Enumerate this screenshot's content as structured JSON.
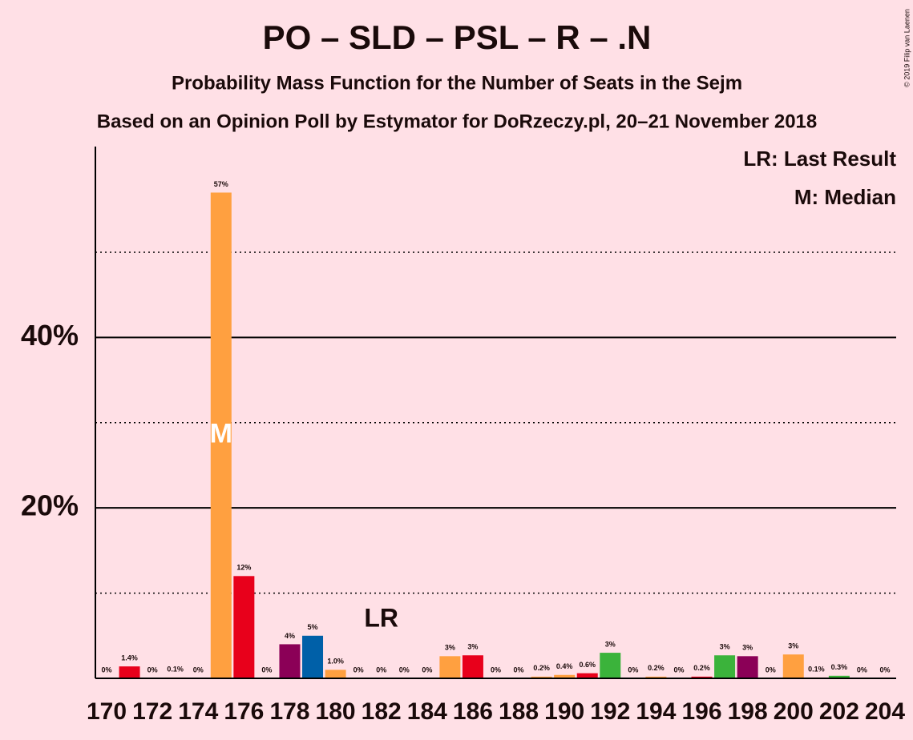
{
  "chart_data": {
    "type": "bar",
    "title": "PO – SLD – PSL – R – .N",
    "subtitle": "Probability Mass Function for the Number of Seats in the Sejm",
    "subtitle2": "Based on an Opinion Poll by Estymator for DoRzeczy.pl, 20–21 November 2018",
    "copyright": "© 2019 Filip van Laenen",
    "legend_lines": [
      "LR: Last Result",
      "M: Median"
    ],
    "categories": [
      "170",
      null,
      "172",
      null,
      "174",
      null,
      "176",
      null,
      "178",
      null,
      "180",
      null,
      "182",
      null,
      "184",
      null,
      "186",
      null,
      "188",
      null,
      "190",
      null,
      "192",
      null,
      "194",
      null,
      "196",
      null,
      "198",
      null,
      "200",
      null,
      "202",
      null,
      "204"
    ],
    "values": [
      0,
      1.4,
      0,
      0.1,
      0,
      57,
      12,
      0,
      4,
      5,
      1.0,
      0,
      0,
      0,
      0,
      2.6,
      2.7,
      0,
      0,
      0.2,
      0.4,
      0.6,
      3.0,
      0,
      0.2,
      0,
      0.2,
      2.7,
      2.6,
      0,
      2.8,
      0.1,
      0.3,
      0,
      0
    ],
    "value_labels": [
      "0%",
      "1.4%",
      "0%",
      "0.1%",
      "0%",
      "57%",
      "12%",
      "0%",
      "4%",
      "5%",
      "1.0%",
      "0%",
      "0%",
      "0%",
      "0%",
      "3%",
      "3%",
      "0%",
      "0%",
      "0.2%",
      "0.4%",
      "0.6%",
      "3%",
      "0%",
      "0.2%",
      "0%",
      "0.2%",
      "3%",
      "3%",
      "0%",
      "3%",
      "0.1%",
      "0.3%",
      "0%",
      "0%"
    ],
    "colors": [
      "#ffa040",
      "#e8001b",
      "#ffa040",
      "#ffa040",
      "#ffa040",
      "#ffa040",
      "#e8001b",
      "#ffa040",
      "#8b0057",
      "#0060a8",
      "#ffa040",
      "#ffa040",
      "#ffa040",
      "#ffa040",
      "#ffa040",
      "#ffa040",
      "#e8001b",
      "#ffa040",
      "#ffa040",
      "#ffa040",
      "#ffa040",
      "#e8001b",
      "#3bb33b",
      "#ffa040",
      "#ffa040",
      "#ffa040",
      "#e8001b",
      "#3bb33b",
      "#8b0057",
      "#ffa040",
      "#ffa040",
      "#ffa040",
      "#3bb33b",
      "#ffa040",
      "#ffa040"
    ],
    "ylim": [
      0,
      62.4
    ],
    "yticks": [
      {
        "value": 20,
        "label": "20%"
      },
      {
        "value": 40,
        "label": "40%"
      }
    ],
    "minor_yticks": [
      10,
      30,
      50
    ],
    "median_label": "M",
    "median_index": 5,
    "last_result_label": "LR",
    "last_result_index": 12
  }
}
